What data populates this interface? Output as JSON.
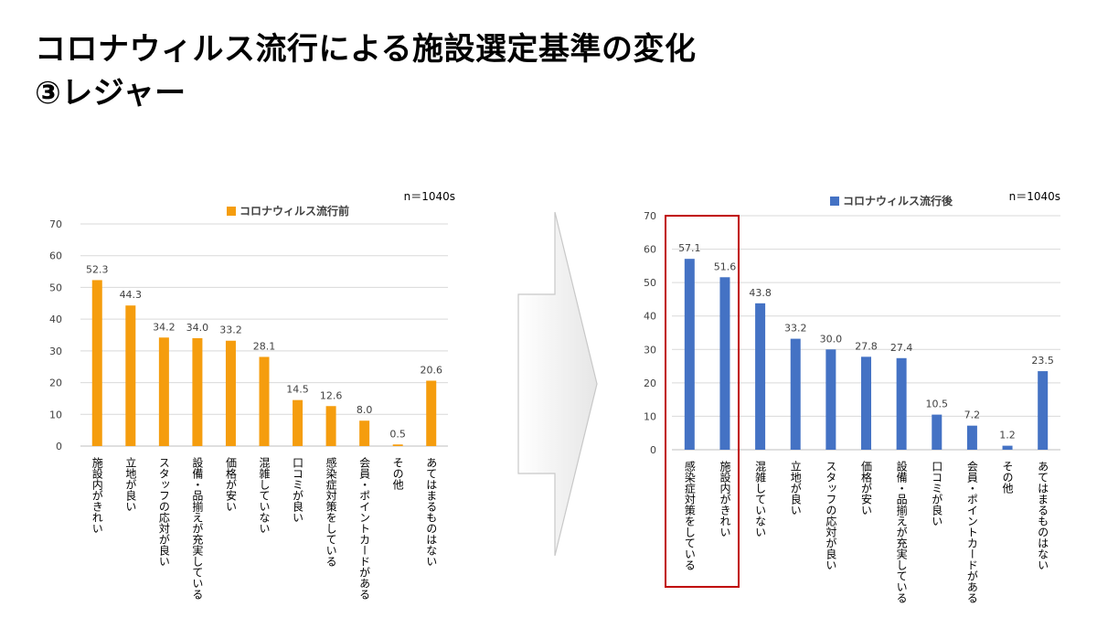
{
  "page": {
    "title_line1": "コロナウィルス流行による施設選定基準の変化",
    "title_line2": "③レジャー"
  },
  "colors": {
    "before": "#f59d0e",
    "after": "#4472c4",
    "highlight": "#c00000",
    "grid": "#d9d9d9",
    "axis_text": "#404040"
  },
  "chart_data": [
    {
      "type": "bar",
      "legend": "コロナウィルス流行前",
      "legend_position": "top-center",
      "note": "n＝1040s",
      "color": "#f59d0e",
      "ylim": [
        0,
        70
      ],
      "yticks": [
        0,
        10,
        20,
        30,
        40,
        50,
        60,
        70
      ],
      "grid": true,
      "categories": [
        "施設内がきれい",
        "立地が良い",
        "スタッフの応対が良い",
        "設備・品揃えが充実している",
        "価格が安い",
        "混雑していない",
        "口コミが良い",
        "感染症対策をしている",
        "会員・ポイントカードがある",
        "その他",
        "あてはまるものはない"
      ],
      "values": [
        52.3,
        44.3,
        34.2,
        34.0,
        33.2,
        28.1,
        14.5,
        12.6,
        8.0,
        0.5,
        20.6
      ],
      "value_labels": [
        "52.3",
        "44.3",
        "34.2",
        "34.0",
        "33.2",
        "28.1",
        "14.5",
        "12.6",
        "8.0",
        "0.5",
        "20.6"
      ]
    },
    {
      "type": "bar",
      "legend": "コロナウィルス流行後",
      "legend_position": "top-center",
      "note": "n＝1040s",
      "color": "#4472c4",
      "ylim": [
        0,
        70
      ],
      "yticks": [
        0,
        10,
        20,
        30,
        40,
        50,
        60,
        70
      ],
      "grid": true,
      "categories": [
        "感染症対策をしている",
        "施設内がきれい",
        "混雑していない",
        "立地が良い",
        "スタッフの応対が良い",
        "価格が安い",
        "設備・品揃えが充実している",
        "口コミが良い",
        "会員・ポイントカードがある",
        "その他",
        "あてはまるものはない"
      ],
      "values": [
        57.1,
        51.6,
        43.8,
        33.2,
        30.0,
        27.8,
        27.4,
        10.5,
        7.2,
        1.2,
        23.5
      ],
      "value_labels": [
        "57.1",
        "51.6",
        "43.8",
        "33.2",
        "30.0",
        "27.8",
        "27.4",
        "10.5",
        "7.2",
        "1.2",
        "23.5"
      ],
      "highlighted_categories": [
        0,
        1
      ]
    }
  ]
}
